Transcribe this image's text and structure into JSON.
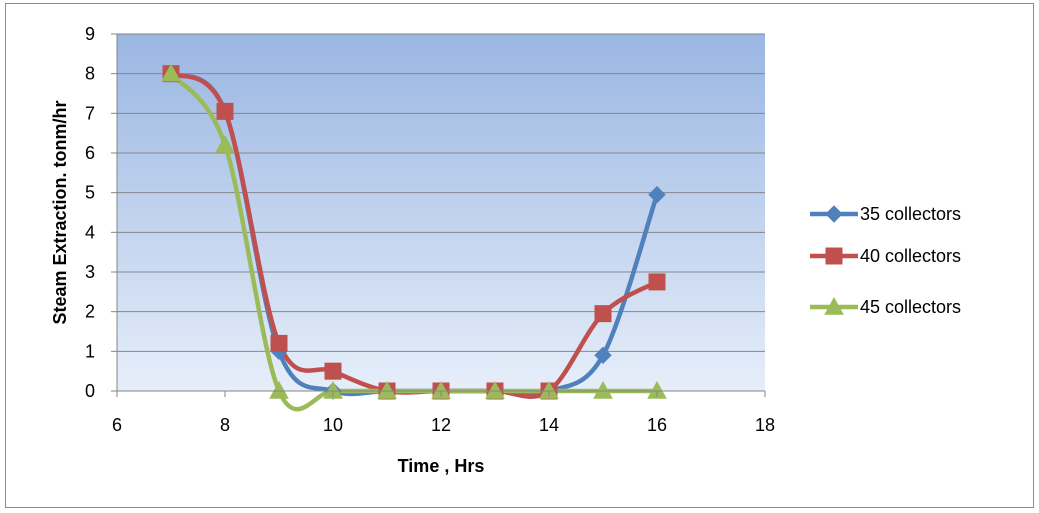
{
  "chart_data": {
    "type": "scatter",
    "subtype": "smooth-lines-with-markers",
    "title": "",
    "xlabel": "Time , Hrs",
    "ylabel": "Steam Extraction. tonm/hr",
    "xlim": [
      6,
      18
    ],
    "ylim": [
      0,
      9
    ],
    "x_ticks": [
      "6",
      "8",
      "10",
      "12",
      "14",
      "16",
      "18"
    ],
    "y_ticks": [
      "0",
      "1",
      "2",
      "3",
      "4",
      "5",
      "6",
      "7",
      "8",
      "9"
    ],
    "grid": "horizontal",
    "legend_position": "right",
    "plot_background": "gradient-blue",
    "series": [
      {
        "name": "35 collectors",
        "color": "#4f81bd",
        "marker": "diamond",
        "x": [
          7,
          8,
          9,
          10,
          11,
          12,
          13,
          14,
          15,
          16
        ],
        "y": [
          8.0,
          7.05,
          1.0,
          0.0,
          0.0,
          0.0,
          0.0,
          0.0,
          0.9,
          4.95
        ]
      },
      {
        "name": "40 collectors",
        "color": "#c0504d",
        "marker": "square",
        "x": [
          7,
          8,
          9,
          10,
          11,
          12,
          13,
          14,
          15,
          16
        ],
        "y": [
          8.0,
          7.05,
          1.2,
          0.5,
          0.0,
          0.0,
          0.0,
          0.0,
          1.95,
          2.75
        ]
      },
      {
        "name": "45 collectors",
        "color": "#9bbb59",
        "marker": "triangle",
        "x": [
          7,
          8,
          9,
          10,
          11,
          12,
          13,
          14,
          15,
          16
        ],
        "y": [
          8.0,
          6.2,
          0.0,
          0.0,
          0.0,
          0.0,
          0.0,
          0.0,
          0.0,
          0.0
        ]
      }
    ]
  }
}
